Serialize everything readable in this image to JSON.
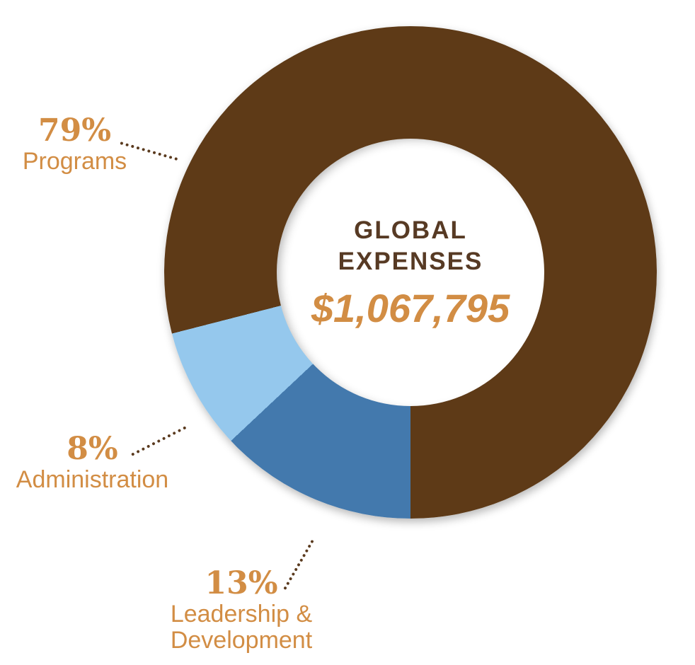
{
  "chart_data": {
    "type": "pie",
    "variant": "donut",
    "center_title_lines": [
      "GLOBAL",
      "EXPENSES"
    ],
    "center_value": "$1,067,795",
    "categories": [
      "Programs",
      "Administration",
      "Leadership & Development"
    ],
    "values": [
      79,
      8,
      13
    ],
    "value_unit": "%",
    "segments": [
      {
        "label": "Programs",
        "pct": 79,
        "pct_label": "79%",
        "display_label": "Programs",
        "color": "#5E3A17"
      },
      {
        "label": "Administration",
        "pct": 8,
        "pct_label": "8%",
        "display_label": "Administration",
        "color": "#95C8ED"
      },
      {
        "label": "Leadership & Development",
        "pct": 13,
        "pct_label": "13%",
        "display_label": "Leadership &\nDevelopment",
        "color": "#4379AD"
      }
    ],
    "start_angle_deg": 180,
    "sweep_direction": "clockwise",
    "order_from_start": [
      2,
      1,
      0
    ],
    "legend_position": "outside-left-with-dotted-leaders",
    "inner_radius_ratio": 0.54
  },
  "palette": {
    "label_orange": "#D28D44",
    "center_title_brown": "#573A24",
    "leader_dot_brown": "#5A3A1E",
    "programs_brown": "#5E3A17",
    "administration_light_blue": "#95C8ED",
    "leadership_blue": "#4379AD",
    "background": "#FFFFFF"
  }
}
